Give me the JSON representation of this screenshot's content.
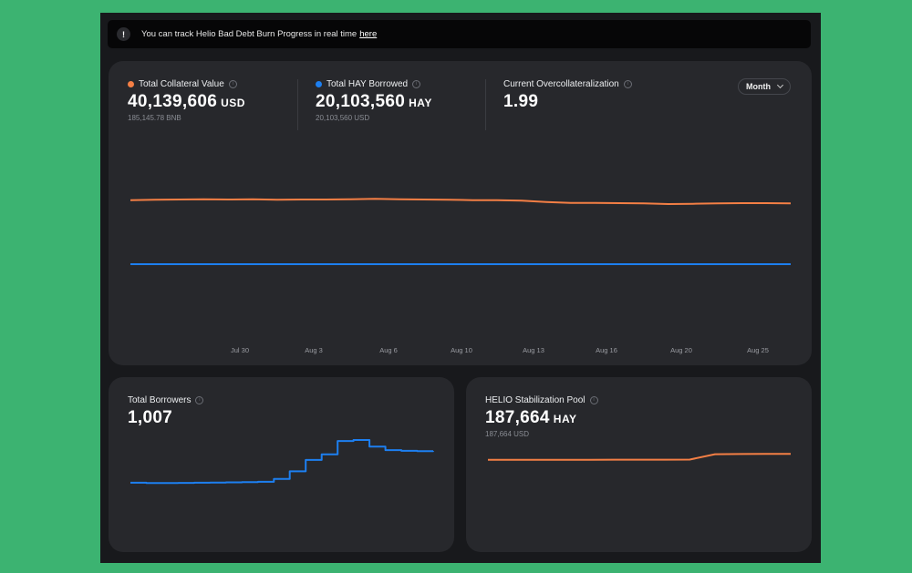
{
  "notice": {
    "icon": "exclamation-icon",
    "text": "You can track Helio Bad Debt Burn Progress in real time",
    "link": "here"
  },
  "stats": {
    "collateral": {
      "label": "Total Collateral Value",
      "value": "40,139,606",
      "unit": "USD",
      "sub": "185,145.78 BNB",
      "color": "#f47f45"
    },
    "borrowed": {
      "label": "Total HAY Borrowed",
      "value": "20,103,560",
      "unit": "HAY",
      "sub": "20,103,560 USD",
      "color": "#1d7ff0"
    },
    "overcollateralization": {
      "label": "Current Overcollateralization",
      "value": "1.99"
    }
  },
  "period_selector": {
    "label": "Month"
  },
  "chart_data": [
    {
      "type": "line",
      "x_ticks": [
        "Jul 30",
        "Aug 3",
        "Aug 6",
        "Aug 10",
        "Aug 13",
        "Aug 16",
        "Aug 20",
        "Aug 25"
      ],
      "series": [
        {
          "name": "Total Collateral Value",
          "color": "#f47f45",
          "values": [
            41.2,
            41.3,
            41.4,
            41.5,
            41.4,
            41.5,
            41.3,
            41.4,
            41.4,
            41.5,
            41.6,
            41.5,
            41.4,
            41.3,
            41.2,
            41.2,
            41.0,
            40.6,
            40.3,
            40.3,
            40.2,
            40.1,
            39.9,
            40.0,
            40.1,
            40.2,
            40.2,
            40.1
          ]
        },
        {
          "name": "Total HAY Borrowed",
          "color": "#1d7ff0",
          "values": [
            20.1,
            20.1,
            20.1,
            20.1,
            20.1,
            20.1,
            20.1,
            20.1,
            20.1,
            20.1,
            20.1,
            20.1,
            20.1,
            20.1,
            20.1,
            20.1,
            20.1,
            20.1,
            20.1,
            20.1,
            20.1,
            20.1,
            20.1,
            20.1,
            20.1,
            20.1,
            20.1,
            20.1
          ]
        }
      ]
    },
    {
      "type": "line",
      "series": [
        {
          "name": "Total Borrowers",
          "color": "#1d7ff0",
          "values": [
            840,
            838,
            838,
            839,
            840,
            841,
            842,
            843,
            845,
            860,
            900,
            960,
            990,
            1060,
            1065,
            1030,
            1012,
            1008,
            1006,
            1007
          ]
        }
      ]
    },
    {
      "type": "line",
      "series": [
        {
          "name": "HELIO Stabilization Pool",
          "color": "#f47f45",
          "values": [
            186200,
            186200,
            186200,
            186210,
            186210,
            186220,
            186220,
            186230,
            186240,
            187600,
            187640,
            187660,
            187664
          ]
        }
      ]
    }
  ],
  "borrowers": {
    "label": "Total Borrowers",
    "value": "1,007"
  },
  "pool": {
    "label": "HELIO Stabilization Pool",
    "value": "187,664",
    "unit": "HAY",
    "sub": "187,664 USD"
  }
}
